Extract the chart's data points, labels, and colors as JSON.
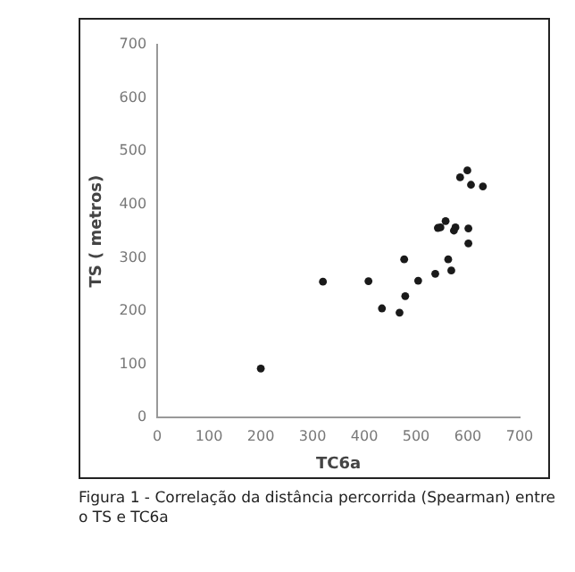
{
  "chart_data": {
    "type": "scatter",
    "xlabel": "TC6a",
    "ylabel": "TS ( metros)",
    "annotations": [
      "Figura 1 - Correlação da distância percorrida (Spearman) entre o TS e TC6a"
    ],
    "x": [
      200,
      320,
      408,
      434,
      468,
      477,
      479,
      504,
      537,
      542,
      547,
      557,
      562,
      568,
      573,
      576,
      585,
      599,
      606,
      601,
      601,
      629
    ],
    "series": [
      {
        "color": "#1a1a1a",
        "values": [
          92,
          255,
          256,
          205,
          197,
          297,
          228,
          257,
          270,
          356,
          357,
          369,
          297,
          276,
          351,
          357,
          451,
          464,
          437,
          355,
          327,
          434
        ]
      }
    ],
    "xlim": [
      0,
      700
    ],
    "xticks": [
      0,
      100,
      200,
      300,
      400,
      500,
      600,
      700
    ],
    "ylim": [
      0,
      700
    ],
    "yticks": [
      0,
      100,
      200,
      300,
      400,
      500,
      600,
      700
    ],
    "grid": false,
    "legend": false,
    "marker": "circle"
  }
}
